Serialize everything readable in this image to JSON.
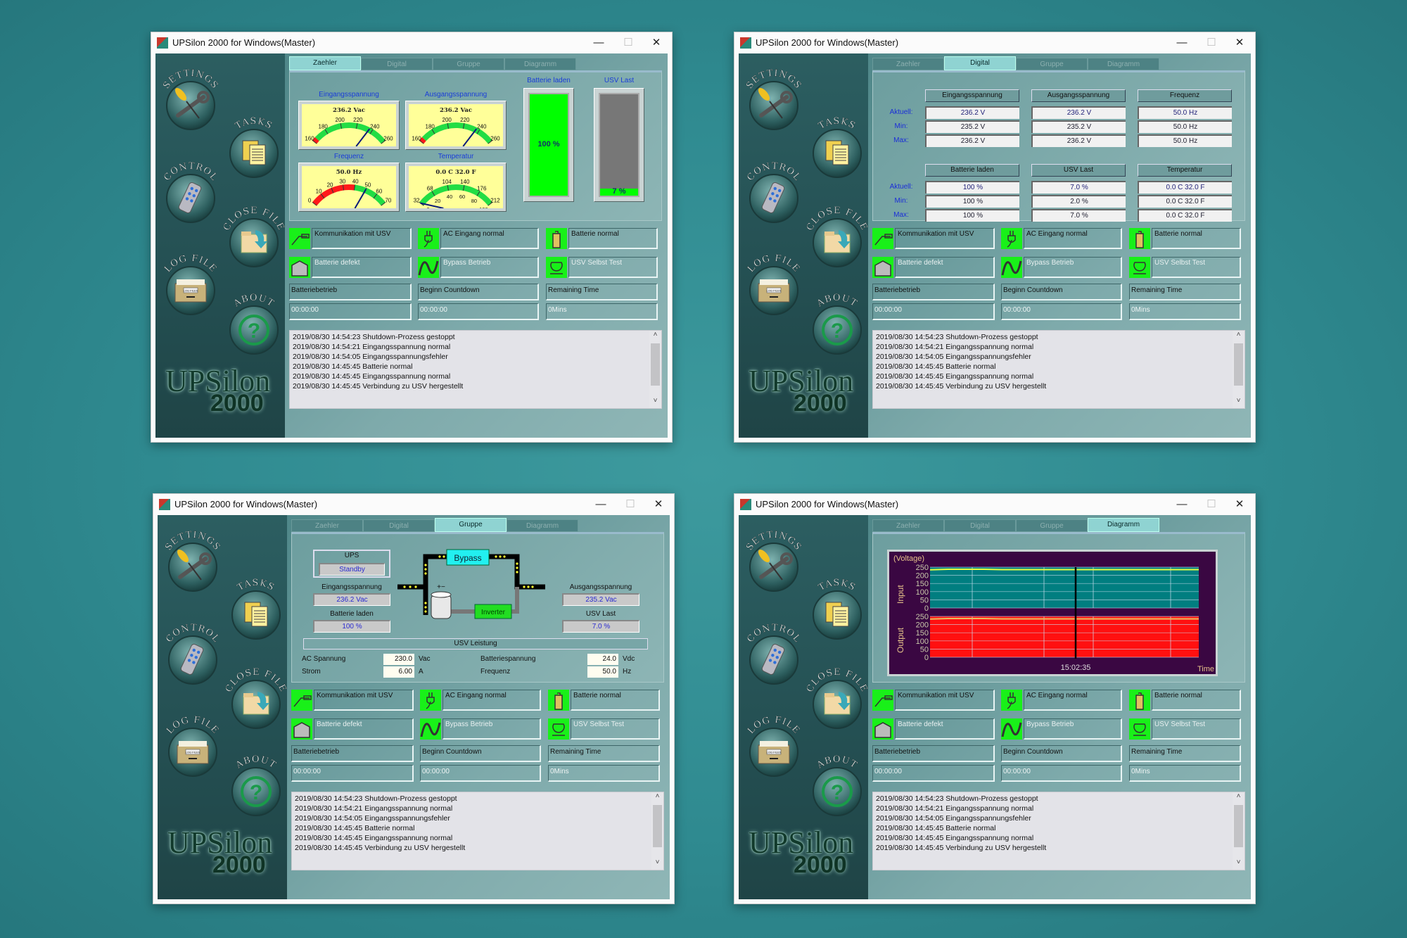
{
  "window_title": "UPSilon 2000 for Windows(Master)",
  "title_controls": {
    "minimize": "—",
    "maximize": "☐",
    "close": "✕"
  },
  "tabs": [
    "Zaehler",
    "Digital",
    "Gruppe",
    "Diagramm"
  ],
  "windows": [
    {
      "active_tab": 0
    },
    {
      "active_tab": 1
    },
    {
      "active_tab": 2
    },
    {
      "active_tab": 3
    }
  ],
  "sidebar": [
    {
      "label": "SETTINGS",
      "icon": "wrench-screwdriver-icon"
    },
    {
      "label": "TASKS",
      "icon": "documents-icon"
    },
    {
      "label": "CONTROL",
      "icon": "remote-control-icon"
    },
    {
      "label": "CLOSE FILE",
      "icon": "folder-arrow-icon"
    },
    {
      "label": "LOG FILE",
      "icon": "file-drawer-icon",
      "drawer_label": "LOG FILES"
    },
    {
      "label": "ABOUT",
      "icon": "question-icon"
    }
  ],
  "logo": {
    "name": "UPSilon",
    "version": "2000"
  },
  "status": [
    {
      "label": "Kommunikation mit USV",
      "active": true,
      "icon": "serial-cable-icon"
    },
    {
      "label": "AC Eingang normal",
      "active": true,
      "icon": "power-plug-icon"
    },
    {
      "label": "Batterie normal",
      "active": true,
      "icon": "battery-icon"
    },
    {
      "label": "Batterie defekt",
      "active": false,
      "icon": "ups-box-icon"
    },
    {
      "label": "Bypass Betrieb",
      "active": false,
      "icon": "sine-wave-icon"
    },
    {
      "label": "USV Selbst Test",
      "active": false,
      "icon": "self-test-icon"
    }
  ],
  "timers": [
    {
      "label": "Batteriebetrieb",
      "value": "00:00:00"
    },
    {
      "label": "Beginn Countdown",
      "value": "00:00:00"
    },
    {
      "label": "Remaining Time",
      "value": "0Mins"
    }
  ],
  "log": [
    "2019/08/30 14:54:23  Shutdown-Prozess gestoppt",
    "2019/08/30 14:54:21  Eingangsspannung normal",
    "2019/08/30 14:54:05  Eingangsspannungsfehler",
    "2019/08/30 14:45:45  Batterie normal",
    "2019/08/30 14:45:45  Eingangsspannung normal",
    "2019/08/30 14:45:45  Verbindung zu USV hergestellt"
  ],
  "zaehler": {
    "gauges": [
      {
        "title": "Eingangsspannung",
        "readout": "236.2 Vac",
        "min": 160,
        "max": 260,
        "ticks": [
          "160",
          "180",
          "200",
          "220",
          "240",
          "260"
        ],
        "red_to": 165,
        "value": 236.2
      },
      {
        "title": "Ausgangsspannung",
        "readout": "236.2 Vac",
        "min": 160,
        "max": 260,
        "ticks": [
          "160",
          "180",
          "200",
          "220",
          "240",
          "260"
        ],
        "red_to": 165,
        "value": 236.2
      },
      {
        "title": "Frequenz",
        "readout": "50.0 Hz",
        "min": 0,
        "max": 70,
        "ticks": [
          "0",
          "10",
          "20",
          "30",
          "40",
          "50",
          "60",
          "70"
        ],
        "red_to": 40,
        "value": 50
      },
      {
        "title": "Temperatur",
        "readout": "0.0 C   32.0 F",
        "min": 32,
        "max": 212,
        "ticks": [
          "32",
          "68",
          "104",
          "140",
          "176",
          "212"
        ],
        "inner_ticks": [
          "0",
          "20",
          "40",
          "60",
          "80",
          "100"
        ],
        "red_to": 32,
        "value": 32
      }
    ],
    "bars": [
      {
        "title": "Batterie laden",
        "percent": 100,
        "label": "100 %"
      },
      {
        "title": "USV Last",
        "percent": 7,
        "label": "7 %"
      }
    ]
  },
  "digital": {
    "row_labels": [
      "Aktuell:",
      "Min:",
      "Max:"
    ],
    "groups": [
      {
        "headers": [
          "Eingangsspannung",
          "Ausgangsspannung",
          "Frequenz"
        ],
        "rows": [
          [
            "236.2 V",
            "236.2 V",
            "50.0 Hz"
          ],
          [
            "235.2 V",
            "235.2 V",
            "50.0 Hz"
          ],
          [
            "236.2 V",
            "236.2 V",
            "50.0 Hz"
          ]
        ]
      },
      {
        "headers": [
          "Batterie laden",
          "USV Last",
          "Temperatur"
        ],
        "rows": [
          [
            "100 %",
            "7.0 %",
            "0.0 C  32.0 F"
          ],
          [
            "100 %",
            "2.0 %",
            "0.0 C  32.0 F"
          ],
          [
            "100 %",
            "7.0 %",
            "0.0 C  32.0 F"
          ]
        ]
      }
    ]
  },
  "gruppe": {
    "ups_label": "UPS",
    "ups_state": "Standby",
    "input_label": "Eingangsspannung",
    "input_value": "236.2 Vac",
    "battery_label": "Batterie laden",
    "battery_value": "100 %",
    "output_label": "Ausgangsspannung",
    "output_value": "235.2 Vac",
    "load_label": "USV Last",
    "load_value": "7.0 %",
    "bypass_label": "Bypass",
    "inverter_label": "Inverter",
    "leistung_label": "USV Leistung",
    "ratings": [
      {
        "label": "AC Spannung",
        "value": "230.0",
        "unit": "Vac"
      },
      {
        "label": "Batteriespannung",
        "value": "24.0",
        "unit": "Vdc"
      },
      {
        "label": "Strom",
        "value": "6.00",
        "unit": "A"
      },
      {
        "label": "Frequenz",
        "value": "50.0",
        "unit": "Hz"
      }
    ]
  },
  "chart_data": {
    "type": "line",
    "ylabel": "(Voltage)",
    "xlabel": "Time",
    "x_tick_labels": [
      "15:02:35"
    ],
    "ylim": [
      0,
      250
    ],
    "y_ticks": [
      "250",
      "200",
      "150",
      "100",
      "50",
      "0"
    ],
    "grid": true,
    "panels": [
      {
        "name": "Input",
        "background": "#007e80",
        "line_color": "#e8ff40",
        "values": [
          234,
          237,
          237,
          237,
          235,
          235,
          235,
          235,
          235,
          235,
          235,
          235,
          235,
          235,
          235,
          235
        ]
      },
      {
        "name": "Output",
        "background": "#ff1010",
        "line_color": "#e8c060",
        "values": [
          234,
          237,
          237,
          237,
          235,
          235,
          235,
          235,
          235,
          235,
          235,
          235,
          235,
          235,
          235,
          235
        ]
      }
    ]
  },
  "colors": {
    "active_green": "#00ff00",
    "title_blue": "#1a3dd8",
    "sidebar": "#2c5e61"
  }
}
